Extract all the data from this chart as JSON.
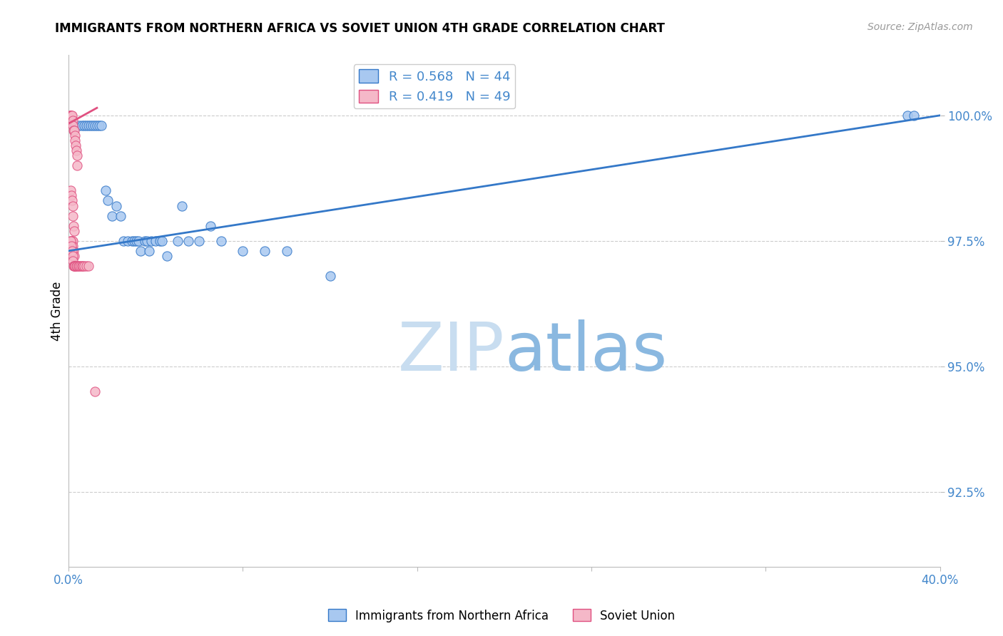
{
  "title": "IMMIGRANTS FROM NORTHERN AFRICA VS SOVIET UNION 4TH GRADE CORRELATION CHART",
  "source": "Source: ZipAtlas.com",
  "ylabel": "4th Grade",
  "y_ticks": [
    92.5,
    95.0,
    97.5,
    100.0
  ],
  "y_tick_labels": [
    "92.5%",
    "95.0%",
    "97.5%",
    "100.0%"
  ],
  "xlim": [
    0.0,
    40.0
  ],
  "ylim": [
    91.0,
    101.2
  ],
  "legend1_label": "Immigrants from Northern Africa",
  "legend2_label": "Soviet Union",
  "R_blue": 0.568,
  "N_blue": 44,
  "R_pink": 0.419,
  "N_pink": 49,
  "blue_scatter_x": [
    0.3,
    0.5,
    0.6,
    0.7,
    0.8,
    0.9,
    1.0,
    1.1,
    1.2,
    1.3,
    1.4,
    1.5,
    1.7,
    1.8,
    2.0,
    2.2,
    2.4,
    2.5,
    2.7,
    2.9,
    3.0,
    3.1,
    3.2,
    3.3,
    3.5,
    3.6,
    3.7,
    3.8,
    4.0,
    4.2,
    4.3,
    4.5,
    5.0,
    5.2,
    5.5,
    6.0,
    6.5,
    7.0,
    8.0,
    9.0,
    10.0,
    12.0,
    38.5,
    38.8
  ],
  "blue_scatter_y": [
    99.8,
    99.8,
    99.8,
    99.8,
    99.8,
    99.8,
    99.8,
    99.8,
    99.8,
    99.8,
    99.8,
    99.8,
    98.5,
    98.3,
    98.0,
    98.2,
    98.0,
    97.5,
    97.5,
    97.5,
    97.5,
    97.5,
    97.5,
    97.3,
    97.5,
    97.5,
    97.3,
    97.5,
    97.5,
    97.5,
    97.5,
    97.2,
    97.5,
    98.2,
    97.5,
    97.5,
    97.8,
    97.5,
    97.3,
    97.3,
    97.3,
    96.8,
    100.0,
    100.0
  ],
  "pink_scatter_x": [
    0.05,
    0.08,
    0.1,
    0.12,
    0.15,
    0.18,
    0.2,
    0.22,
    0.25,
    0.28,
    0.3,
    0.32,
    0.35,
    0.38,
    0.4,
    0.1,
    0.12,
    0.15,
    0.18,
    0.2,
    0.22,
    0.25,
    0.1,
    0.12,
    0.15,
    0.18,
    0.2,
    0.22,
    0.25,
    0.1,
    0.12,
    0.15,
    0.18,
    0.2,
    0.22,
    0.25,
    0.28,
    0.3,
    0.35,
    0.4,
    0.45,
    0.5,
    0.55,
    0.6,
    0.65,
    0.7,
    0.8,
    0.9,
    1.2
  ],
  "pink_scatter_y": [
    100.0,
    100.0,
    100.0,
    100.0,
    100.0,
    99.9,
    99.8,
    99.7,
    99.7,
    99.6,
    99.5,
    99.4,
    99.3,
    99.2,
    99.0,
    98.5,
    98.4,
    98.3,
    98.2,
    98.0,
    97.8,
    97.7,
    97.5,
    97.5,
    97.5,
    97.5,
    97.4,
    97.3,
    97.2,
    97.5,
    97.4,
    97.3,
    97.2,
    97.1,
    97.0,
    97.0,
    97.0,
    97.0,
    97.0,
    97.0,
    97.0,
    97.0,
    97.0,
    97.0,
    97.0,
    97.0,
    97.0,
    97.0,
    94.5
  ],
  "blue_line_x": [
    0.0,
    40.0
  ],
  "blue_line_y": [
    97.3,
    100.0
  ],
  "pink_line_x": [
    0.05,
    1.3
  ],
  "pink_line_y": [
    99.85,
    100.15
  ],
  "watermark_zip": "ZIP",
  "watermark_atlas": "atlas",
  "background_color": "#ffffff",
  "blue_color": "#a8c8f0",
  "blue_line_color": "#3478c8",
  "pink_color": "#f5b8c8",
  "pink_line_color": "#e05080",
  "grid_color": "#cccccc",
  "title_color": "#000000",
  "axis_label_color": "#000000",
  "tick_label_color": "#4488cc",
  "watermark_color": "#d0e8f8"
}
